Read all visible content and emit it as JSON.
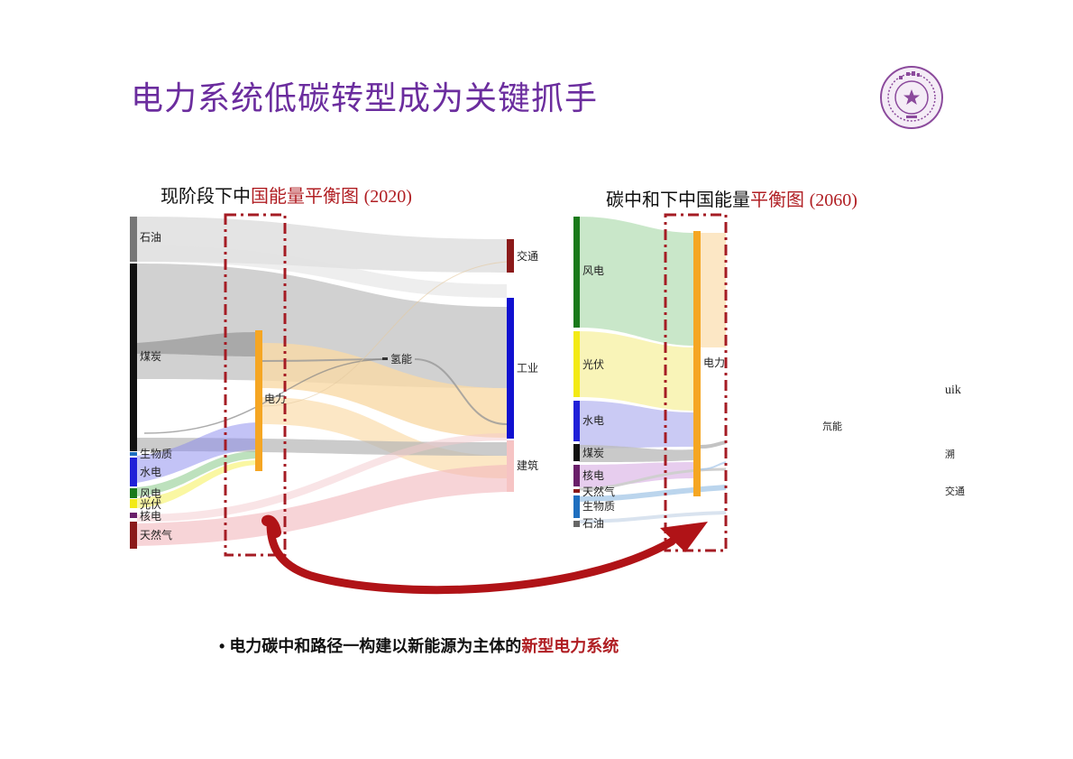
{
  "slide": {
    "title": "电力系统低碳转型成为关键抓手",
    "bullet": {
      "prefix": "电力碳中和路径一构建以新能源为主体的",
      "highlight": "新型电力系统"
    }
  },
  "logo": {
    "icon": "university-seal-icon",
    "color": "#8b4a9c"
  },
  "left_chart": {
    "title_black": "现阶段下中",
    "title_red": "国能量平衡图",
    "year": "(2020)",
    "nodes": {
      "oil": "石油",
      "coal": "煤炭",
      "biomass": "生物质",
      "hydro": "水电",
      "wind": "风电",
      "solar": "光伏",
      "nuclear": "核电",
      "gas": "天然气",
      "electricity": "电力",
      "hydrogen": "氢能",
      "transport": "交通",
      "industry": "工业",
      "building": "建筑"
    }
  },
  "right_chart": {
    "title_black": "碳中和下中国能量",
    "title_red": "平衡图",
    "year": "(2060)",
    "nodes": {
      "wind": "风电",
      "solar": "光伏",
      "hydro": "水电",
      "coal": "煤炭",
      "nuclear": "核电",
      "gas": "天然气",
      "biomass": "生物质",
      "oil": "石油",
      "electricity": "电力"
    }
  },
  "stray_labels": {
    "uik": "uik",
    "hydrogen": "氘能",
    "source": "溯",
    "transport": "交通"
  },
  "colors": {
    "title_purple": "#6b2d9e",
    "highlight_red": "#b01e23",
    "dashed_box": "#a51c24",
    "arrow": "#b01317",
    "electricity": "#f5a623",
    "industry": "#1010d0",
    "coal": "#111111",
    "wind": "#1a7a1a",
    "solar": "#f3ea16",
    "hydro": "#2020d8",
    "nuclear": "#6a1f6a",
    "gas": "#8b1a1a",
    "biomass": "#1f6fbf",
    "transport": "#8b1a1a",
    "building": "#f6c4c4",
    "oil": "#777777"
  }
}
